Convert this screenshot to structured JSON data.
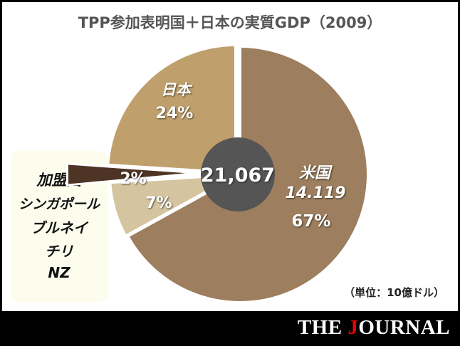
{
  "chart_data": {
    "type": "pie",
    "title": "TPP参加表明国＋日本の実質GDP（2009）",
    "unit": "（単位：10億ドル）",
    "total": "21,067",
    "slices": [
      {
        "name": "米国",
        "value_label": "14.119",
        "percent": 67,
        "label": "67%",
        "color": "#9d7e5e"
      },
      {
        "name": "",
        "percent": 7,
        "label": "7%",
        "color": "#d4c49f"
      },
      {
        "name": "加盟国",
        "percent": 2,
        "label": "2%",
        "color": "#4e3424",
        "exploded": true
      },
      {
        "name": "日本",
        "percent": 24,
        "label": "24%",
        "color": "#bfa06c"
      }
    ],
    "legend": [
      "加盟国",
      "シンガポール",
      "ブルネイ",
      "チリ",
      "NZ"
    ],
    "center_color": "#555555"
  },
  "brand": {
    "prefix": "THE ",
    "highlight": "J",
    "suffix": "OURNAL"
  }
}
